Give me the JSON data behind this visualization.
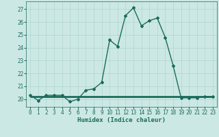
{
  "xlabel": "Humidex (Indice chaleur)",
  "ylabel": "",
  "background_color": "#cce8e5",
  "grid_color": "#b0d4d0",
  "line_color": "#1a6b5a",
  "x_main": [
    0,
    1,
    2,
    3,
    4,
    5,
    6,
    7,
    8,
    9,
    10,
    11,
    12,
    13,
    14,
    15,
    16,
    17,
    18,
    19,
    20,
    21,
    22,
    23
  ],
  "y_main": [
    20.3,
    19.9,
    20.3,
    20.3,
    20.3,
    19.8,
    20.0,
    20.7,
    20.8,
    21.3,
    24.6,
    24.1,
    26.5,
    27.1,
    25.7,
    26.1,
    26.3,
    24.8,
    22.6,
    20.1,
    20.1,
    20.1,
    20.2,
    20.2
  ],
  "x_flat": [
    0,
    1,
    2,
    3,
    4,
    5,
    6,
    7,
    8,
    9,
    10,
    11,
    12,
    13,
    14,
    15,
    16,
    17,
    18,
    19,
    20,
    21,
    22,
    23
  ],
  "y_flat": [
    20.2,
    20.2,
    20.2,
    20.2,
    20.2,
    20.2,
    20.2,
    20.2,
    20.2,
    20.2,
    20.2,
    20.2,
    20.2,
    20.2,
    20.2,
    20.2,
    20.2,
    20.2,
    20.2,
    20.2,
    20.2,
    20.2,
    20.2,
    20.2
  ],
  "xlim": [
    -0.5,
    23.5
  ],
  "ylim": [
    19.4,
    27.6
  ],
  "yticks": [
    20,
    21,
    22,
    23,
    24,
    25,
    26,
    27
  ],
  "xticks": [
    0,
    1,
    2,
    3,
    4,
    5,
    6,
    7,
    8,
    9,
    10,
    11,
    12,
    13,
    14,
    15,
    16,
    17,
    18,
    19,
    20,
    21,
    22,
    23
  ],
  "marker": "D",
  "markersize": 2.0,
  "linewidth": 1.0,
  "flat_linewidth": 2.0,
  "tick_fontsize": 5.5,
  "label_fontsize": 6.5
}
